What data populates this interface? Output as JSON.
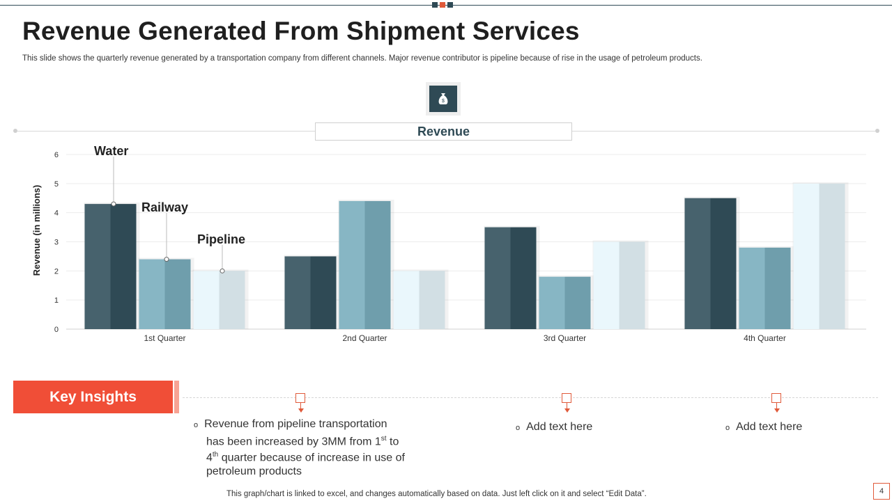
{
  "slide": {
    "title": "Revenue Generated From Shipment Services",
    "subtitle": "This slide shows the quarterly revenue generated by a transportation company from different channels. Major revenue contributor is pipeline because of rise in the usage of petroleum products.",
    "footer": "This graph/chart is linked to excel,  and changes automatically based on data. Just left click on it and select “Edit Data”.",
    "page_number": "4"
  },
  "colors": {
    "water": "#2f4a55",
    "railway": "#6f9eac",
    "pipeline": "#d2dfe4",
    "accent": "#f04e37",
    "dark": "#2f4a55"
  },
  "chart_data": {
    "type": "bar",
    "title": "Revenue",
    "xlabel": "",
    "ylabel": "Revenue (in millions)",
    "ylim": [
      0,
      6
    ],
    "yticks": [
      0,
      1,
      2,
      3,
      4,
      5,
      6
    ],
    "grid": true,
    "categories": [
      "1st  Quarter",
      "2nd Quarter",
      "3rd Quarter",
      "4th Quarter"
    ],
    "series": [
      {
        "name": "Water",
        "values": [
          4.3,
          2.5,
          3.5,
          4.5
        ]
      },
      {
        "name": "Railway",
        "values": [
          2.4,
          4.4,
          1.8,
          2.8
        ]
      },
      {
        "name": "Pipeline",
        "values": [
          2.0,
          2.0,
          3.0,
          5.0
        ]
      }
    ]
  },
  "insights": {
    "header": "Key Insights",
    "item1": {
      "line1": "Revenue  from pipeline transportation",
      "line2_pre": "has been increased by 3MM from 1",
      "line2_sup": "st",
      "line2_post": " to",
      "line3_pre": "4",
      "line3_sup": "th",
      "line3_post": " quarter because of increase in use of",
      "line4": "petroleum products"
    },
    "item2": "Add text here",
    "item3": "Add text here",
    "bullet": "o"
  },
  "icons": {
    "revenue": "money-bag-icon"
  }
}
